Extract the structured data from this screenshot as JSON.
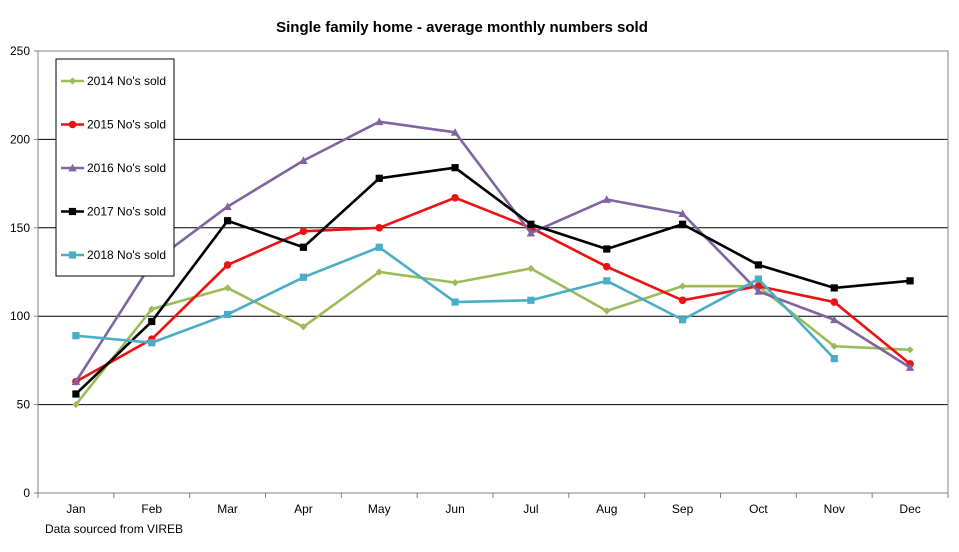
{
  "chart_data": {
    "type": "line",
    "title": "Single family home - average monthly numbers sold",
    "source_note": "Data sourced from VIREB",
    "categories": [
      "Jan",
      "Feb",
      "Mar",
      "Apr",
      "May",
      "Jun",
      "Jul",
      "Aug",
      "Sep",
      "Oct",
      "Nov",
      "Dec"
    ],
    "ylim": [
      0,
      250
    ],
    "yticks": [
      0,
      50,
      100,
      150,
      200,
      250
    ],
    "grid": true,
    "legend_position": "top-left",
    "series": [
      {
        "name": "2014 No's sold",
        "color": "#9bbb59",
        "marker": "diamond",
        "values": [
          50,
          104,
          116,
          94,
          125,
          119,
          127,
          103,
          117,
          117,
          83,
          81
        ]
      },
      {
        "name": "2015 No's sold",
        "color": "#ee1111",
        "marker": "circle",
        "values": [
          63,
          87,
          129,
          148,
          150,
          167,
          150,
          128,
          109,
          117,
          108,
          73
        ]
      },
      {
        "name": "2016 No's sold",
        "color": "#8064a2",
        "marker": "triangle",
        "values": [
          63,
          130,
          162,
          188,
          210,
          204,
          147,
          166,
          158,
          114,
          98,
          71
        ]
      },
      {
        "name": "2017 No's sold",
        "color": "#000000",
        "marker": "square",
        "values": [
          56,
          97,
          154,
          139,
          178,
          184,
          152,
          138,
          152,
          129,
          116,
          120
        ]
      },
      {
        "name": "2018 No's sold",
        "color": "#4bacc6",
        "marker": "square",
        "values": [
          89,
          85,
          101,
          122,
          139,
          108,
          109,
          120,
          98,
          121,
          76,
          null
        ]
      }
    ]
  }
}
